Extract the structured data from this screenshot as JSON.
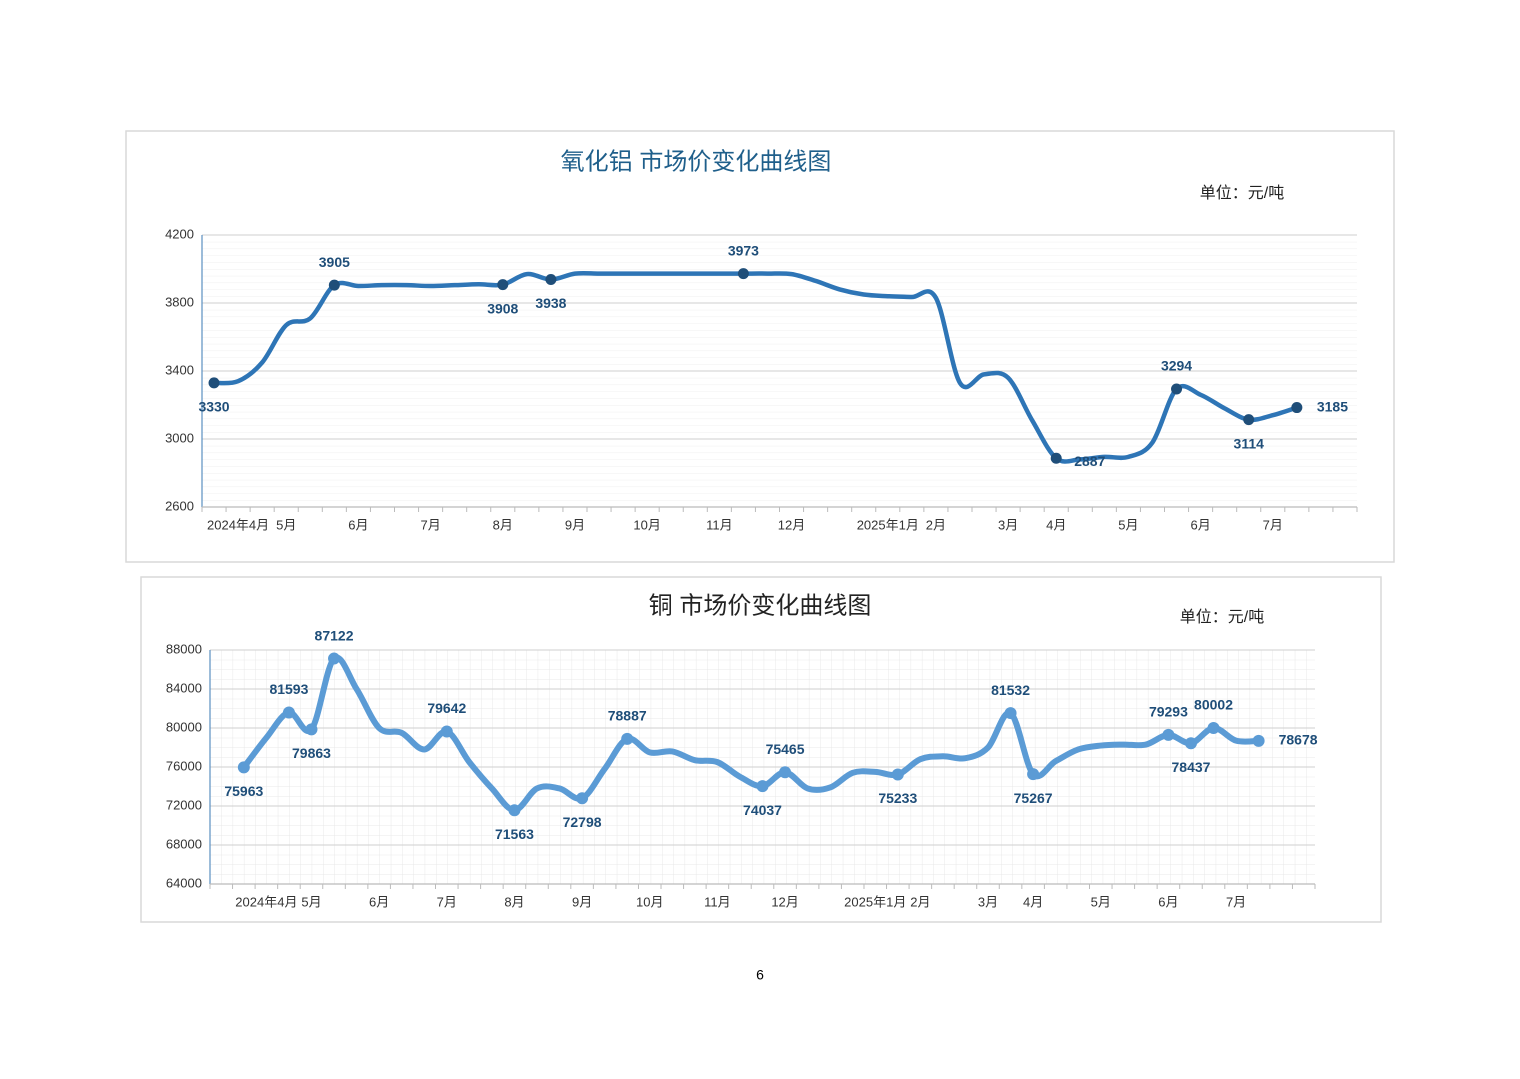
{
  "chart_data": [
    {
      "type": "line",
      "title": "氧化铝 市场价变化曲线图",
      "unit": "单位：元/吨",
      "categories": [
        "",
        "2024年4月",
        "",
        "5月",
        "",
        "",
        "6月",
        "",
        "",
        "7月",
        "",
        "",
        "8月",
        "",
        "",
        "9月",
        "",
        "",
        "10月",
        "",
        "",
        "11月",
        "",
        "",
        "12月",
        "",
        "",
        "",
        "2025年1月",
        "",
        "2月",
        "",
        "",
        "3月",
        "",
        "4月",
        "",
        "",
        "5月",
        "",
        "",
        "6月",
        "",
        "",
        "7月",
        "",
        "",
        ""
      ],
      "series": [
        {
          "color": "#2e75b6",
          "values": [
            3330,
            3340,
            3450,
            3670,
            3710,
            3905,
            3900,
            3905,
            3905,
            3900,
            3905,
            3910,
            3908,
            3970,
            3938,
            3973,
            3973,
            3973,
            3973,
            3973,
            3973,
            3973,
            3973,
            3973,
            3970,
            3930,
            3880,
            3850,
            3840,
            3835,
            3830,
            3330,
            3380,
            3360,
            3110,
            2887,
            2880,
            2895,
            2895,
            2980,
            3294,
            3260,
            3180,
            3114,
            3140,
            3185,
            null,
            null
          ],
          "value_labels": [
            "3330",
            null,
            null,
            null,
            null,
            "3905",
            null,
            null,
            null,
            null,
            null,
            null,
            "3908",
            null,
            "3938",
            null,
            null,
            null,
            null,
            null,
            null,
            null,
            "3973",
            null,
            null,
            null,
            null,
            null,
            null,
            null,
            null,
            null,
            null,
            null,
            null,
            "2887",
            null,
            null,
            null,
            null,
            "3294",
            null,
            null,
            "3114",
            null,
            "3185",
            null,
            null
          ]
        }
      ],
      "ylim": [
        2600,
        4200
      ],
      "yticks": [
        2600,
        3000,
        3400,
        3800,
        4200
      ],
      "grid": true
    },
    {
      "type": "line",
      "title": "铜 市场价变化曲线图",
      "unit": "单位：元/吨",
      "categories": [
        "",
        "",
        "2024年4月",
        "",
        "5月",
        "",
        "",
        "6月",
        "",
        "",
        "7月",
        "",
        "",
        "8月",
        "",
        "",
        "9月",
        "",
        "",
        "10月",
        "",
        "",
        "11月",
        "",
        "",
        "12月",
        "",
        "",
        "",
        "2025年1月",
        "",
        "2月",
        "",
        "",
        "3月",
        "",
        "4月",
        "",
        "",
        "5月",
        "",
        "",
        "6月",
        "",
        "",
        "7月",
        "",
        "",
        ""
      ],
      "series": [
        {
          "color": "#5b9bd5",
          "values": [
            null,
            75963,
            79000,
            81593,
            79863,
            87122,
            84000,
            80000,
            79500,
            77800,
            79642,
            76500,
            73800,
            71563,
            73800,
            73800,
            72798,
            75800,
            78887,
            77500,
            77600,
            76700,
            76500,
            75000,
            74037,
            75465,
            73800,
            73900,
            75400,
            75500,
            75233,
            76800,
            77100,
            76900,
            78000,
            81532,
            75267,
            76600,
            77800,
            78200,
            78300,
            78300,
            79293,
            78437,
            80002,
            78700,
            78678,
            null,
            null
          ],
          "value_labels": [
            null,
            "75963",
            null,
            "81593",
            "79863",
            "87122",
            null,
            null,
            null,
            null,
            "79642",
            null,
            null,
            "71563",
            null,
            null,
            "72798",
            null,
            "78887",
            null,
            null,
            null,
            null,
            null,
            "74037",
            "75465",
            null,
            null,
            null,
            null,
            "75233",
            null,
            null,
            null,
            null,
            "81532",
            "75267",
            null,
            null,
            null,
            null,
            null,
            "79293",
            "78437",
            "80002",
            null,
            "78678",
            null,
            null
          ]
        }
      ],
      "ylim": [
        64000,
        88000
      ],
      "yticks": [
        64000,
        68000,
        72000,
        76000,
        80000,
        84000,
        88000
      ],
      "grid": true
    }
  ],
  "page_number": "6"
}
